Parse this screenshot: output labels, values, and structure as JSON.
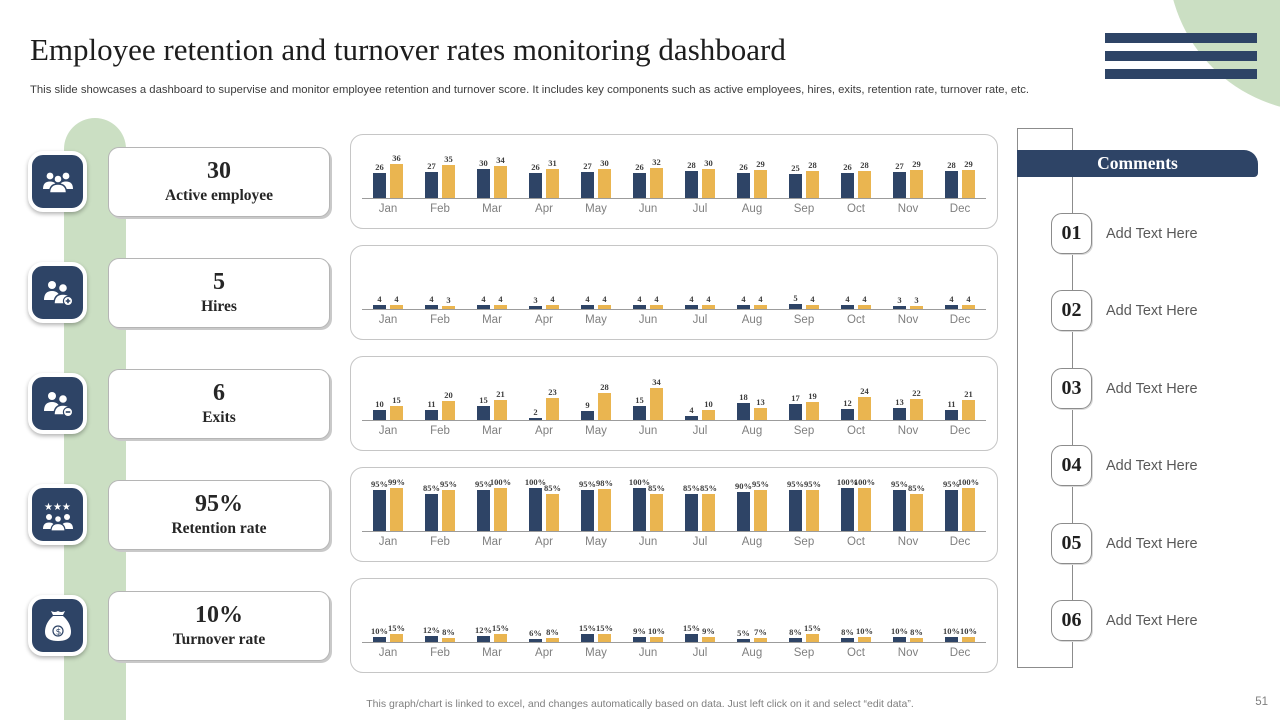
{
  "slide": {
    "title": "Employee retention and turnover rates monitoring dashboard",
    "subtitle": "This slide showcases a dashboard to supervise and monitor employee retention and turnover  score. It includes key components such as active employees, hires, exits, retention rate, turnover rate,  etc.",
    "footer_note": "This graph/chart is linked to excel,  and changes automatically based on data. Just left click on it and select “edit data”.",
    "page_number": "51"
  },
  "colors": {
    "navy": "#2E4466",
    "gold": "#EAB550",
    "green": "#CBDFC3"
  },
  "kpis": [
    {
      "value": "30",
      "label": "Active employee",
      "icon": "employees-icon"
    },
    {
      "value": "5",
      "label": "Hires",
      "icon": "person-add-icon"
    },
    {
      "value": "6",
      "label": "Exits",
      "icon": "person-remove-icon"
    },
    {
      "value": "95%",
      "label": "Retention rate",
      "icon": "stars-people-icon"
    },
    {
      "value": "10%",
      "label": "Turnover rate",
      "icon": "money-bag-icon"
    }
  ],
  "comments": {
    "title": "Comments",
    "items": [
      {
        "number": "01",
        "text": "Add Text Here"
      },
      {
        "number": "02",
        "text": "Add Text Here"
      },
      {
        "number": "03",
        "text": "Add Text Here"
      },
      {
        "number": "04",
        "text": "Add Text Here"
      },
      {
        "number": "05",
        "text": "Add Text Here"
      },
      {
        "number": "06",
        "text": "Add Text Here"
      }
    ]
  },
  "chart_data": [
    {
      "type": "bar",
      "name": "active-employee",
      "title": "Active employee",
      "value_suffix": "",
      "legend": "none",
      "grid": false,
      "categories": [
        "Jan",
        "Feb",
        "Mar",
        "Apr",
        "May",
        "Jun",
        "Jul",
        "Aug",
        "Sep",
        "Oct",
        "Nov",
        "Dec"
      ],
      "series": [
        {
          "name": "series-navy",
          "color": "#2E4466",
          "values": [
            26,
            27,
            30,
            26,
            27,
            26,
            28,
            26,
            25,
            26,
            27,
            28
          ]
        },
        {
          "name": "series-gold",
          "color": "#EAB550",
          "values": [
            36,
            35,
            34,
            31,
            30,
            32,
            30,
            29,
            28,
            28,
            29,
            29
          ]
        }
      ]
    },
    {
      "type": "bar",
      "name": "hires",
      "title": "Hires",
      "value_suffix": "",
      "legend": "none",
      "grid": false,
      "categories": [
        "Jan",
        "Feb",
        "Mar",
        "Apr",
        "May",
        "Jun",
        "Jul",
        "Aug",
        "Sep",
        "Oct",
        "Nov",
        "Dec"
      ],
      "series": [
        {
          "name": "series-navy",
          "color": "#2E4466",
          "values": [
            4,
            4,
            4,
            3,
            4,
            4,
            4,
            4,
            5,
            4,
            3,
            4
          ]
        },
        {
          "name": "series-gold",
          "color": "#EAB550",
          "values": [
            4,
            3,
            4,
            4,
            4,
            4,
            4,
            4,
            4,
            4,
            3,
            4
          ]
        }
      ]
    },
    {
      "type": "bar",
      "name": "exits",
      "title": "Exits",
      "value_suffix": "",
      "legend": "none",
      "grid": false,
      "categories": [
        "Jan",
        "Feb",
        "Mar",
        "Apr",
        "May",
        "Jun",
        "Jul",
        "Aug",
        "Sep",
        "Oct",
        "Nov",
        "Dec"
      ],
      "series": [
        {
          "name": "series-navy",
          "color": "#2E4466",
          "values": [
            10,
            11,
            15,
            2,
            9,
            15,
            4,
            18,
            17,
            12,
            13,
            11
          ]
        },
        {
          "name": "series-gold",
          "color": "#EAB550",
          "values": [
            15,
            20,
            21,
            23,
            28,
            34,
            10,
            13,
            19,
            24,
            22,
            21
          ]
        }
      ]
    },
    {
      "type": "bar",
      "name": "retention-rate",
      "title": "Retention rate",
      "value_suffix": "%",
      "legend": "none",
      "grid": false,
      "categories": [
        "Jan",
        "Feb",
        "Mar",
        "Apr",
        "May",
        "Jun",
        "Jul",
        "Aug",
        "Sep",
        "Oct",
        "Nov",
        "Dec"
      ],
      "series": [
        {
          "name": "series-navy",
          "color": "#2E4466",
          "values": [
            95,
            85,
            95,
            100,
            95,
            100,
            85,
            90,
            95,
            100,
            95,
            95
          ]
        },
        {
          "name": "series-gold",
          "color": "#EAB550",
          "values": [
            99,
            95,
            100,
            85,
            98,
            85,
            85,
            95,
            95,
            100,
            85,
            100
          ]
        }
      ]
    },
    {
      "type": "bar",
      "name": "turnover-rate",
      "title": "Turnover rate",
      "value_suffix": "%",
      "legend": "none",
      "grid": false,
      "categories": [
        "Jan",
        "Feb",
        "Mar",
        "Apr",
        "May",
        "Jun",
        "Jul",
        "Aug",
        "Sep",
        "Oct",
        "Nov",
        "Dec"
      ],
      "series": [
        {
          "name": "series-navy",
          "color": "#2E4466",
          "values": [
            10,
            12,
            12,
            6,
            15,
            9,
            15,
            5,
            8,
            8,
            10,
            10
          ]
        },
        {
          "name": "series-gold",
          "color": "#EAB550",
          "values": [
            15,
            8,
            15,
            8,
            15,
            10,
            9,
            7,
            15,
            10,
            8,
            10
          ]
        }
      ]
    }
  ]
}
